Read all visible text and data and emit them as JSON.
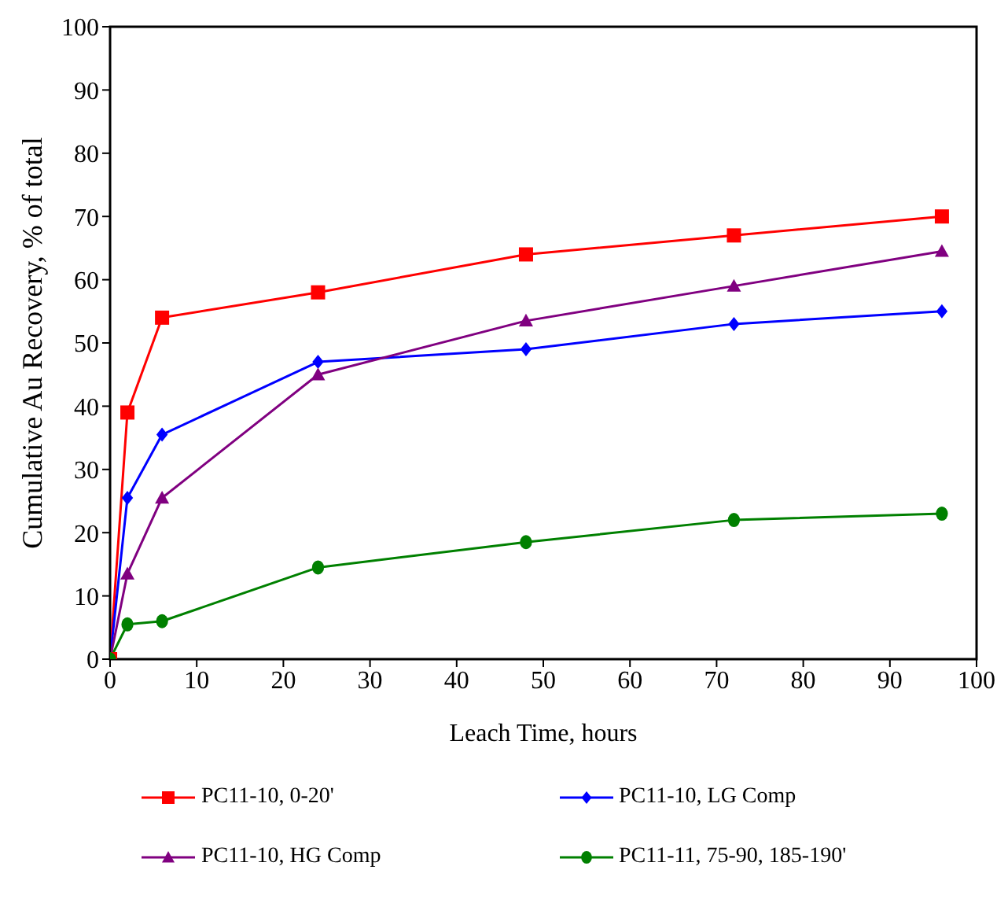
{
  "chart_data": {
    "type": "line",
    "xlabel": "Leach Time, hours",
    "ylabel": "Cumulative Au Recovery, % of total",
    "x": [
      0,
      2,
      6,
      24,
      48,
      72,
      96
    ],
    "series": [
      {
        "name": "PC11-10, 0-20'",
        "color": "#ff0000",
        "marker": "square",
        "values": [
          0,
          39,
          54,
          58,
          64,
          67,
          70
        ]
      },
      {
        "name": "PC11-10, LG Comp",
        "color": "#0000ff",
        "marker": "diamond",
        "values": [
          0,
          25.5,
          35.5,
          47,
          49,
          53,
          55
        ]
      },
      {
        "name": "PC11-10, HG Comp",
        "color": "#800080",
        "marker": "triangle",
        "values": [
          0,
          13.5,
          25.5,
          45,
          53.5,
          59,
          64.5
        ]
      },
      {
        "name": "PC11-11, 75-90, 185-190'",
        "color": "#008000",
        "marker": "circle",
        "values": [
          0,
          5.5,
          6,
          14.5,
          18.5,
          22,
          23
        ]
      }
    ],
    "xlim": [
      0,
      100
    ],
    "xticks": [
      0,
      10,
      20,
      30,
      40,
      50,
      60,
      70,
      80,
      90,
      100
    ],
    "ylim": [
      0,
      100
    ],
    "yticks": [
      0,
      10,
      20,
      30,
      40,
      50,
      60,
      70,
      80,
      90,
      100
    ],
    "grid": false,
    "legend": "bottom",
    "line_style": "solid"
  }
}
